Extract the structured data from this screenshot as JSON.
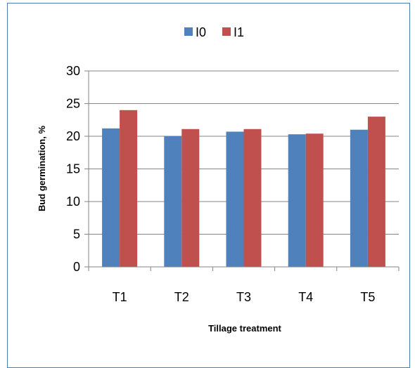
{
  "chart_data": {
    "type": "bar",
    "title": "",
    "xlabel": "Tillage treatment",
    "ylabel": "Bud germination, %",
    "ylim": [
      0,
      30
    ],
    "yticks": [
      0,
      5,
      10,
      15,
      20,
      25,
      30
    ],
    "categories": [
      "T1",
      "T2",
      "T3",
      "T4",
      "T5"
    ],
    "series": [
      {
        "name": "I0",
        "color": "#4f81bd",
        "values": [
          21.2,
          20.0,
          20.7,
          20.3,
          21.0
        ]
      },
      {
        "name": "I1",
        "color": "#c0504d",
        "values": [
          24.0,
          21.1,
          21.1,
          20.4,
          23.0
        ]
      }
    ],
    "grid": true,
    "legend": "top-center"
  }
}
